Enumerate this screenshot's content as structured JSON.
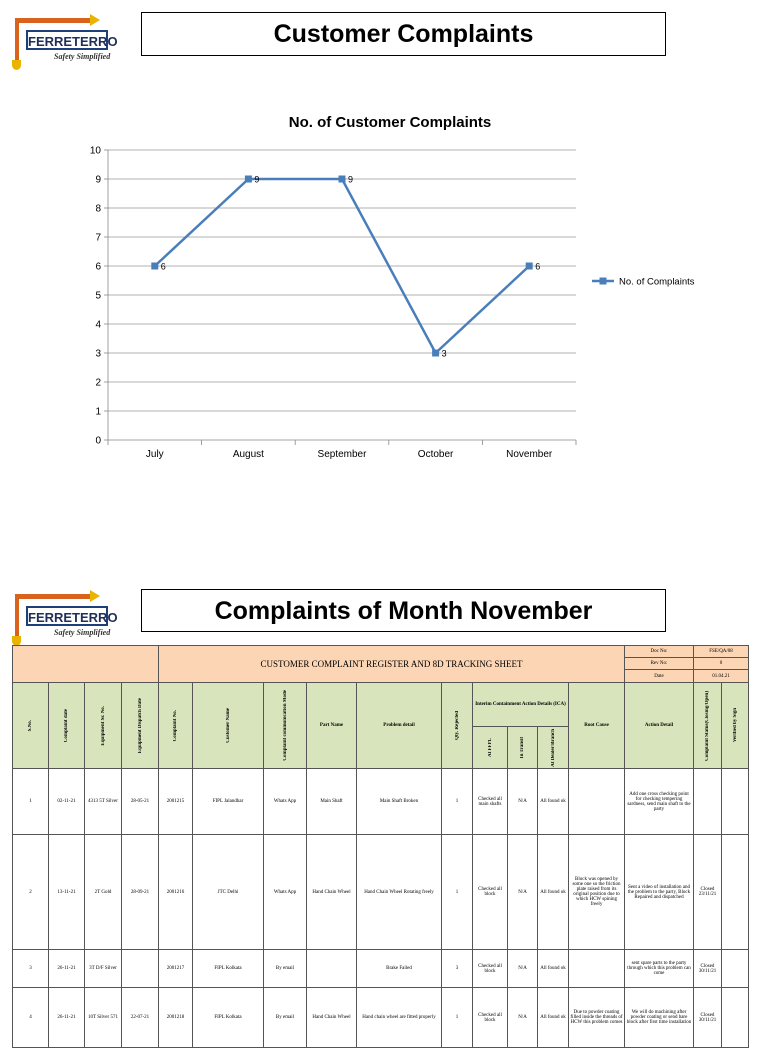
{
  "logo": {
    "name": "FERRETERRO",
    "tagline": "Safety Simplified"
  },
  "page1": {
    "title": "Customer Complaints"
  },
  "chart_data": {
    "type": "line",
    "title": "No. of  Customer Complaints",
    "categories": [
      "July",
      "August",
      "September",
      "October",
      "November"
    ],
    "series": [
      {
        "name": "No. of Complaints",
        "values": [
          6,
          9,
          9,
          3,
          6
        ],
        "color": "#4a7ebb"
      }
    ],
    "ylim": [
      0,
      10
    ],
    "yticks": [
      0,
      1,
      2,
      3,
      4,
      5,
      6,
      7,
      8,
      9,
      10
    ],
    "grid": true,
    "legend": "right",
    "data_labels": true
  },
  "page2": {
    "title": "Complaints of Month November"
  },
  "sheet": {
    "title": "CUSTOMER COMPLAINT REGISTER AND 8D TRACKING SHEET",
    "doc": [
      {
        "label": "Doc No:",
        "value": "FSE/QA/08"
      },
      {
        "label": "Rev No:",
        "value": "0"
      },
      {
        "label": "Date",
        "value": "01.04.21"
      }
    ],
    "headers": {
      "sno": "S.No.",
      "complaint_date": "Complaint date",
      "equipment": "Equipment Sr. No.",
      "dispatch": "Equipment Dispatch Date",
      "complaint_no": "Complaint No.",
      "customer": "Customer Name",
      "mode": "Complaint communication Mode",
      "part": "Part Name",
      "problem": "Problem detail",
      "qty": "Qty. Rejected",
      "ica": "Interim Containment Action Details (ICA)",
      "at_ffpl": "At FFPL",
      "in_transit": "In Transit",
      "at_dealer": "At Dealer/Branch",
      "root_cause": "Root Cause",
      "action": "Action Detail",
      "status": "Complaint Status(Closing/Open)",
      "verified": "Verified by Sign"
    },
    "rows": [
      {
        "sno": "1",
        "date": "02-11-21",
        "equipment": "4313 5T Silver",
        "dispatch": "28-05-21",
        "complaint_no": "2001215",
        "customer": "FIPL Jalandhar",
        "mode": "Whats App",
        "part": "Main Shaft",
        "problem": "Main Shaft Broken",
        "qty": "1",
        "at_ffpl": "Checked all main shafts",
        "in_transit": "N/A",
        "at_dealer": "All found ok",
        "root_cause": "",
        "action": "Add one cross checking point for checking tempering sardness, send main shaft to the party",
        "status": "",
        "verified": ""
      },
      {
        "sno": "2",
        "date": "13-11-21",
        "equipment": "2T Gold",
        "dispatch": "28-09-21",
        "complaint_no": "2001216",
        "customer": "JTC Delhi",
        "mode": "Whats App",
        "part": "Hand Chain Wheel",
        "problem": "Hand Chain Wheel Rotating freely",
        "qty": "1",
        "at_ffpl": "Checked all block",
        "in_transit": "N/A",
        "at_dealer": "All found ok",
        "root_cause": "Block was opened by some one so the friction plate raised from its original position due to which HCW spining freely",
        "action": "Sent a video of installation and the problem to the party, Block Repaired and dispatched",
        "status": "Closed 23/11/21",
        "verified": ""
      },
      {
        "sno": "3",
        "date": "26-11-21",
        "equipment": "3T D/F Silver",
        "dispatch": "",
        "complaint_no": "2001217",
        "customer": "FIPL Kolkata",
        "mode": "By email",
        "part": "",
        "problem": "Brake Failed",
        "qty": "3",
        "at_ffpl": "Checked all block",
        "in_transit": "N/A",
        "at_dealer": "All found ok",
        "root_cause": "",
        "action": "sent spare parts to the party through which this problem can come",
        "status": "Closed 30/11/21",
        "verified": ""
      },
      {
        "sno": "4",
        "date": "26-11-21",
        "equipment": "10T Silver 571",
        "dispatch": "22-07-21",
        "complaint_no": "2001218",
        "customer": "FIPL Kolkata",
        "mode": "By email",
        "part": "Hand Chain Wheel",
        "problem": "Hand chain wheel are fitted properly",
        "qty": "1",
        "at_ffpl": "Checked all block",
        "in_transit": "N/A",
        "at_dealer": "All found ok",
        "root_cause": "Due to powder coating filled inside the threads of HCW this problem comes",
        "action": "We will do machining after powder coating or send bare block after first time installation",
        "status": "Closed 30/11/21",
        "verified": ""
      }
    ]
  }
}
